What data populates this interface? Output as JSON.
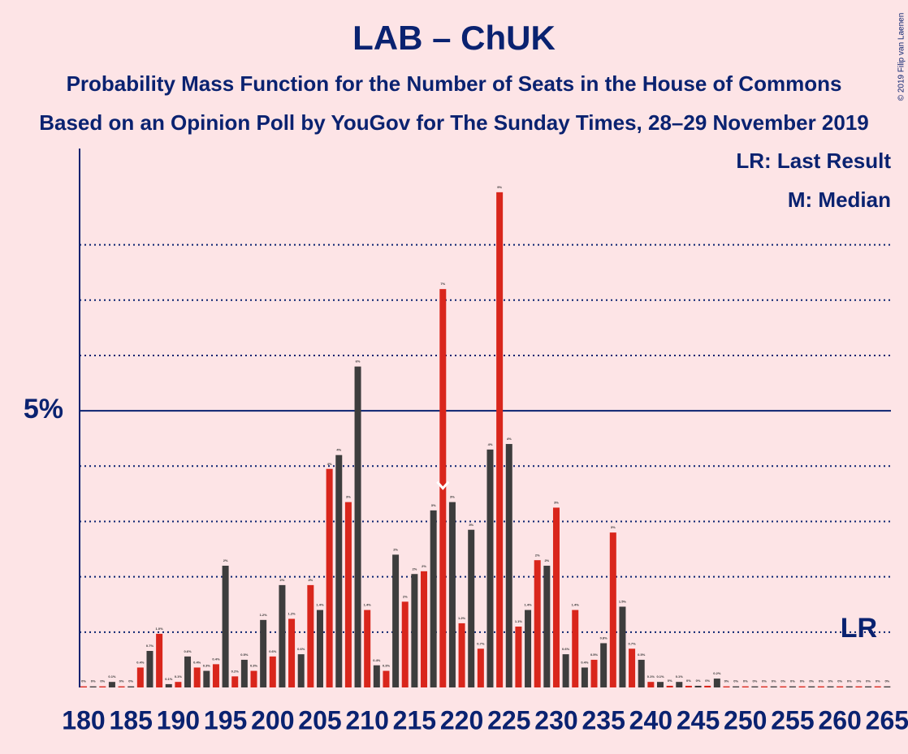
{
  "chart_data": {
    "type": "bar",
    "title": "LAB – ChUK",
    "subtitle": "Probability Mass Function for the Number of Seats in the House of Commons",
    "subtitle2": "Based on an Opinion Poll by YouGov for The Sunday Times, 28–29 November 2019",
    "copyright": "© 2019 Filip van Laenen",
    "legend": [
      "LR: Last Result",
      "M: Median"
    ],
    "median": 218,
    "median_label": "M",
    "last_result": 262,
    "last_result_label": "LR",
    "colors": [
      "#d9261c",
      "#3d3d3d"
    ],
    "x": [
      180,
      181,
      182,
      183,
      184,
      185,
      186,
      187,
      188,
      189,
      190,
      191,
      192,
      193,
      194,
      195,
      196,
      197,
      198,
      199,
      200,
      201,
      202,
      203,
      204,
      205,
      206,
      207,
      208,
      209,
      210,
      211,
      212,
      213,
      214,
      215,
      216,
      217,
      218,
      219,
      220,
      221,
      222,
      223,
      224,
      225,
      226,
      227,
      228,
      229,
      230,
      231,
      232,
      233,
      234,
      235,
      236,
      237,
      238,
      239,
      240,
      241,
      242,
      243,
      244,
      245,
      246,
      247,
      248,
      249,
      250,
      251,
      252,
      253,
      254,
      255,
      256,
      257,
      258,
      259,
      260,
      261,
      262,
      263,
      264,
      265
    ],
    "values": [
      0.02,
      0.02,
      0.02,
      0.1,
      0.02,
      0.02,
      0.36,
      0.66,
      0.97,
      0.06,
      0.1,
      0.56,
      0.36,
      0.3,
      0.42,
      2.2,
      0.2,
      0.5,
      0.3,
      1.22,
      0.56,
      1.85,
      1.24,
      0.6,
      1.85,
      1.4,
      3.95,
      4.2,
      3.35,
      5.8,
      1.4,
      0.4,
      0.3,
      2.4,
      1.55,
      2.05,
      2.1,
      3.2,
      7.2,
      3.35,
      1.16,
      2.85,
      0.7,
      4.3,
      8.95,
      4.4,
      1.1,
      1.4,
      2.3,
      2.2,
      3.25,
      0.6,
      1.4,
      0.36,
      0.5,
      0.8,
      2.8,
      1.46,
      0.7,
      0.5,
      0.1,
      0.1,
      0.03,
      0.1,
      0.03,
      0.03,
      0.03,
      0.16,
      0.02,
      0.02,
      0.02,
      0.02,
      0.02,
      0.02,
      0.02,
      0.02,
      0.02,
      0.02,
      0.02,
      0.02,
      0.02,
      0.02,
      0.02,
      0.02,
      0.02,
      0.02
    ],
    "value_labels": [
      "0%",
      "0%",
      "0%",
      "0.1%",
      "0%",
      "0%",
      "0.4%",
      "0.7%",
      "1.0%",
      "0.1%",
      "0.1%",
      "0.6%",
      "0.4%",
      "0.3%",
      "0.4%",
      "2%",
      "0.2%",
      "0.5%",
      "0.3%",
      "1.2%",
      "0.6%",
      "2%",
      "1.2%",
      "0.6%",
      "2%",
      "1.4%",
      "4%",
      "4%",
      "3%",
      "6%",
      "1.4%",
      "0.4%",
      "0.3%",
      "2%",
      "2%",
      "2%",
      "2%",
      "3%",
      "7%",
      "3%",
      "1.2%",
      "3%",
      "0.7%",
      "4%",
      "9%",
      "4%",
      "1.1%",
      "1.4%",
      "2%",
      "2%",
      "3%",
      "0.6%",
      "1.4%",
      "0.4%",
      "0.5%",
      "0.8%",
      "3%",
      "1.5%",
      "0.7%",
      "0.5%",
      "0.1%",
      "0.1%",
      "0%",
      "0.1%",
      "0%",
      "0%",
      "0%",
      "0.2%",
      "0%",
      "0%",
      "0%",
      "0%",
      "0%",
      "0%",
      "0%",
      "0%",
      "0%",
      "0%",
      "0%",
      "0%",
      "0%",
      "0%",
      "0%",
      "0%",
      "0%",
      "0%"
    ],
    "xlim": [
      179.57,
      265.4
    ],
    "xticks": [
      180,
      185,
      190,
      195,
      200,
      205,
      210,
      215,
      220,
      225,
      230,
      235,
      240,
      245,
      250,
      255,
      260,
      265
    ],
    "ylim": [
      0,
      9.74
    ],
    "yticks": [
      {
        "value": 5,
        "label": "5%"
      }
    ],
    "minor_grid": [
      1,
      2,
      3,
      4,
      6,
      7,
      8
    ]
  }
}
